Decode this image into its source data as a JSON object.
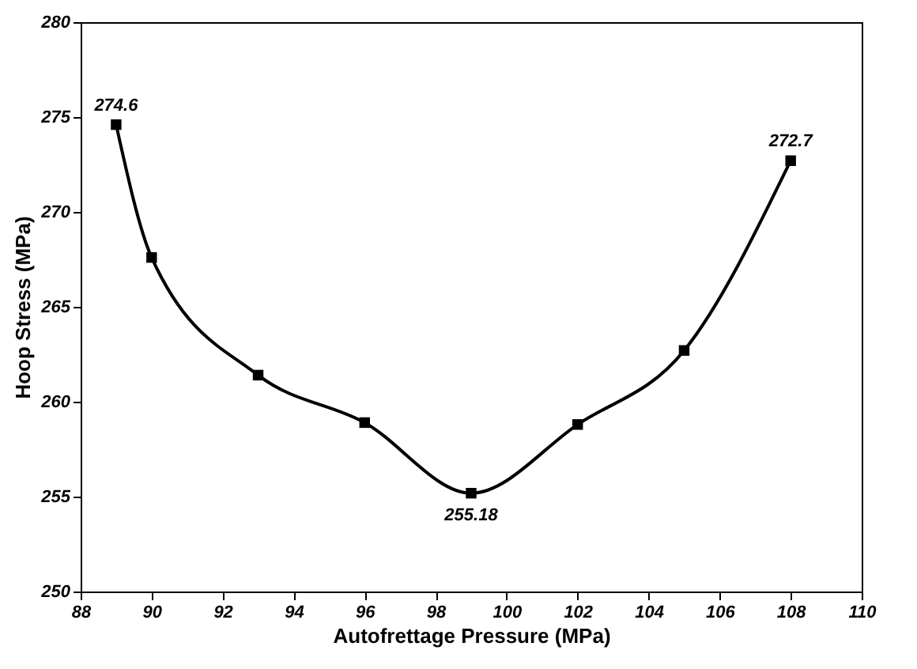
{
  "chart_data": {
    "type": "line",
    "xlabel": "Autofrettage Pressure (MPa)",
    "ylabel": "Hoop Stress (MPa)",
    "x": [
      89,
      90,
      93,
      96,
      99,
      102,
      105,
      108
    ],
    "series": [
      {
        "color": "#000000",
        "values": [
          274.6,
          267.6,
          261.4,
          258.9,
          255.18,
          258.8,
          262.7,
          272.7
        ],
        "value_labels": [
          "274.6",
          null,
          null,
          null,
          "255.18",
          null,
          null,
          "272.7"
        ]
      }
    ],
    "xlim": [
      88,
      110
    ],
    "xticks": [
      88,
      90,
      92,
      94,
      96,
      98,
      100,
      102,
      104,
      106,
      108,
      110
    ],
    "ylim": [
      250,
      280
    ],
    "yticks": [
      250,
      255,
      260,
      265,
      270,
      275,
      280
    ],
    "marker": "square",
    "line_style": "solid",
    "grid": false
  }
}
